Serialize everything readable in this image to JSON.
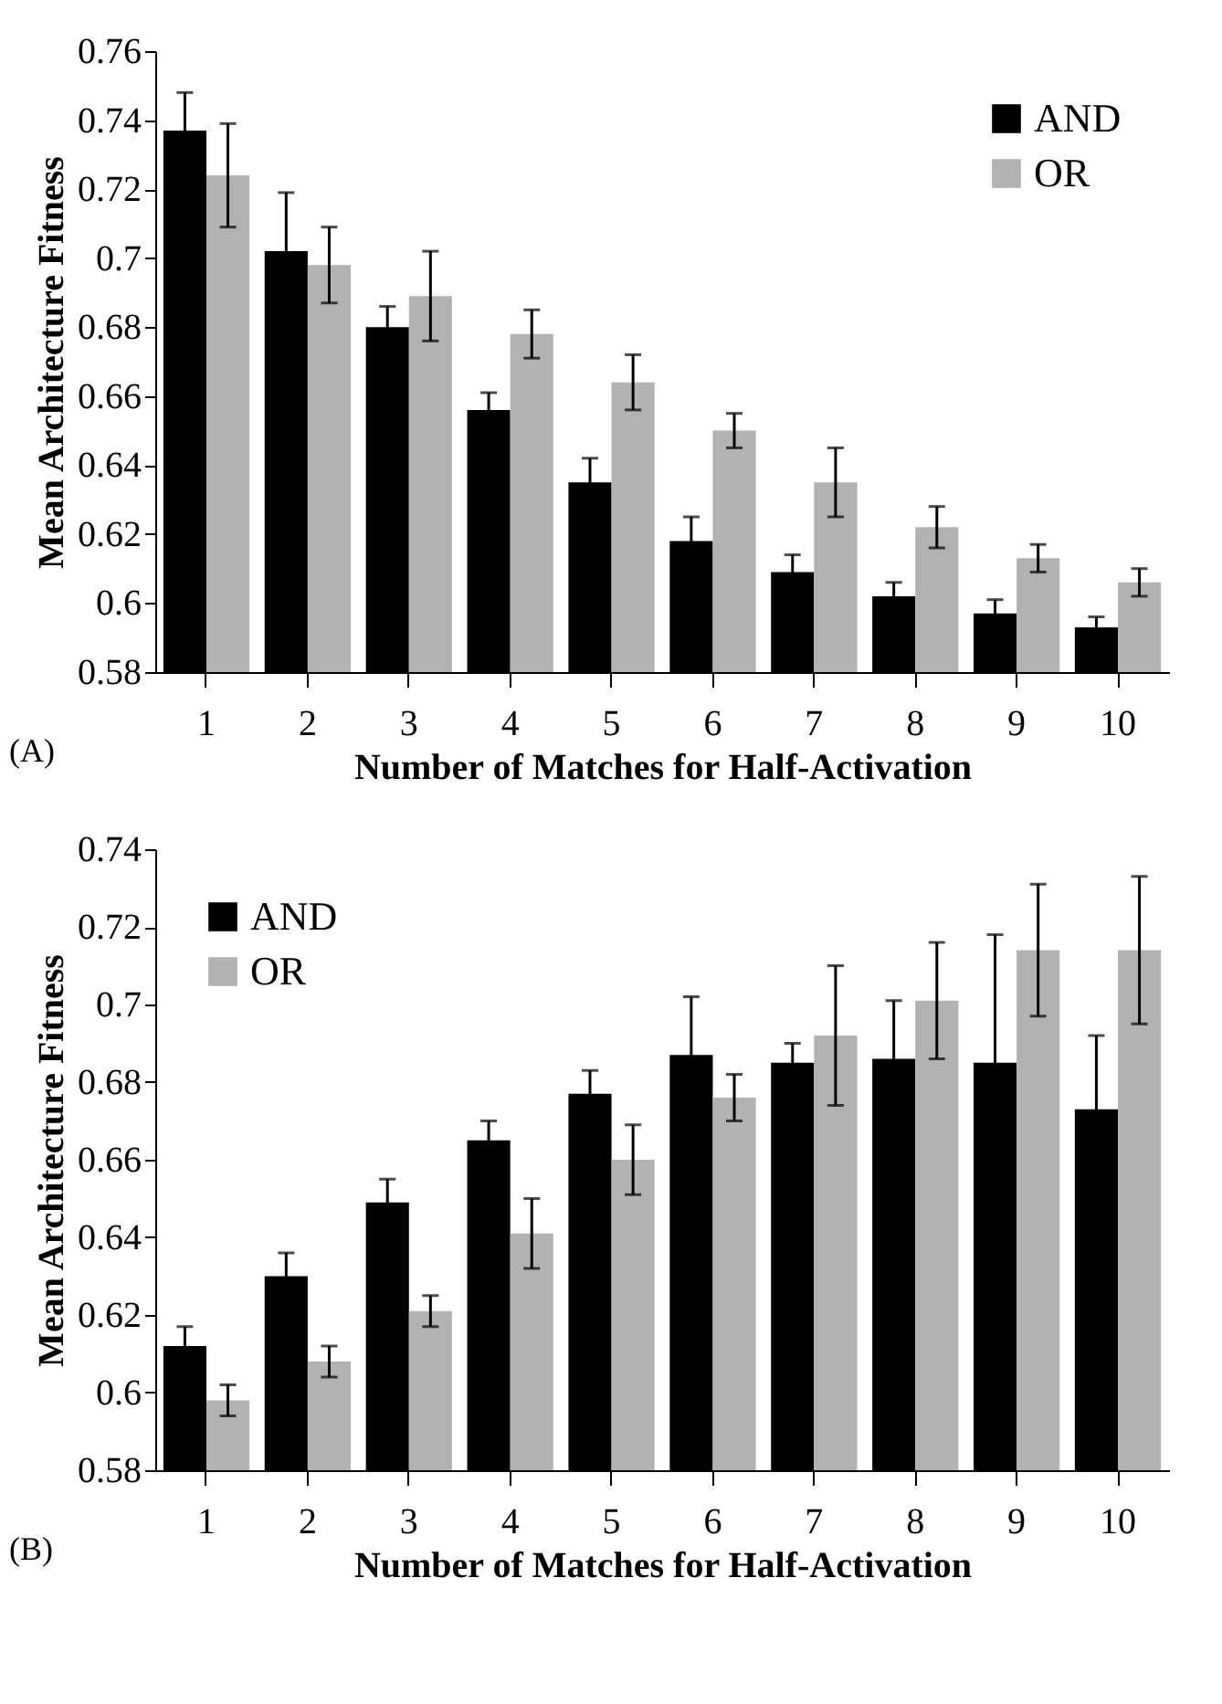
{
  "chart_data": [
    {
      "type": "bar",
      "xlabel": "Number of Matches for Half-Activation",
      "ylabel": "Mean Architecture Fitness",
      "categories": [
        "1",
        "2",
        "3",
        "4",
        "5",
        "6",
        "7",
        "8",
        "9",
        "10"
      ],
      "ylim": [
        0.58,
        0.76
      ],
      "yticks": [
        0.58,
        0.6,
        0.62,
        0.64,
        0.66,
        0.68,
        0.7,
        0.72,
        0.74,
        0.76
      ],
      "legend": "top right",
      "grid": false,
      "annotations": [
        "(A)"
      ],
      "series": [
        {
          "name": "AND",
          "color": "#000000",
          "values": [
            0.737,
            0.702,
            0.68,
            0.656,
            0.635,
            0.618,
            0.609,
            0.602,
            0.597,
            0.593
          ],
          "errors": [
            0.011,
            0.017,
            0.006,
            0.005,
            0.007,
            0.007,
            0.005,
            0.004,
            0.004,
            0.003
          ]
        },
        {
          "name": "OR",
          "color": "#b2b2b2",
          "values": [
            0.724,
            0.698,
            0.689,
            0.678,
            0.664,
            0.65,
            0.635,
            0.622,
            0.613,
            0.606
          ],
          "errors": [
            0.015,
            0.011,
            0.013,
            0.007,
            0.008,
            0.005,
            0.01,
            0.006,
            0.004,
            0.004
          ]
        }
      ]
    },
    {
      "type": "bar",
      "xlabel": "Number of Matches for Half-Activation",
      "ylabel": "Mean Architecture Fitness",
      "categories": [
        "1",
        "2",
        "3",
        "4",
        "5",
        "6",
        "7",
        "8",
        "9",
        "10"
      ],
      "ylim": [
        0.58,
        0.74
      ],
      "yticks": [
        0.58,
        0.6,
        0.62,
        0.64,
        0.66,
        0.68,
        0.7,
        0.72,
        0.74
      ],
      "legend": "top left",
      "grid": false,
      "annotations": [
        "(B)"
      ],
      "series": [
        {
          "name": "AND",
          "color": "#000000",
          "values": [
            0.612,
            0.63,
            0.649,
            0.665,
            0.677,
            0.687,
            0.685,
            0.686,
            0.685,
            0.673
          ],
          "errors": [
            0.005,
            0.006,
            0.006,
            0.005,
            0.006,
            0.015,
            0.005,
            0.015,
            0.033,
            0.019
          ]
        },
        {
          "name": "OR",
          "color": "#b2b2b2",
          "values": [
            0.598,
            0.608,
            0.621,
            0.641,
            0.66,
            0.676,
            0.692,
            0.701,
            0.714,
            0.714
          ],
          "errors": [
            0.004,
            0.004,
            0.004,
            0.009,
            0.009,
            0.006,
            0.018,
            0.015,
            0.017,
            0.019
          ]
        }
      ]
    }
  ]
}
